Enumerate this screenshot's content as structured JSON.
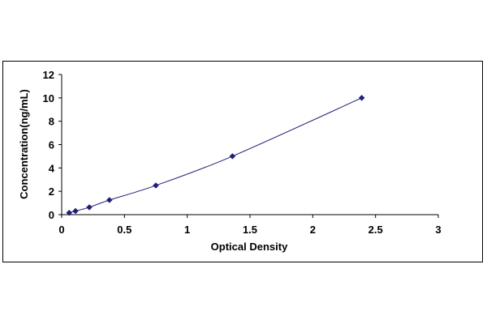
{
  "chart_data": {
    "type": "scatter",
    "title": "",
    "xlabel": "Optical Density",
    "ylabel": "Concentration(ng/mL)",
    "xlim": [
      0,
      3
    ],
    "ylim": [
      0,
      12
    ],
    "x_ticks": [
      "0",
      "0.5",
      "1",
      "1.5",
      "2",
      "2.5",
      "3"
    ],
    "y_ticks": [
      "0",
      "2",
      "4",
      "6",
      "8",
      "10",
      "12"
    ],
    "grid": false,
    "legend": "none",
    "fit_line": true,
    "series": [
      {
        "points": [
          {
            "x": 0.06,
            "y": 0.16
          },
          {
            "x": 0.11,
            "y": 0.31
          },
          {
            "x": 0.22,
            "y": 0.63
          },
          {
            "x": 0.38,
            "y": 1.25
          },
          {
            "x": 0.75,
            "y": 2.5
          },
          {
            "x": 1.36,
            "y": 5
          },
          {
            "x": 2.39,
            "y": 10
          }
        ]
      }
    ],
    "colors": {
      "marker": "#1f1f7a",
      "line": "#1f1f7a",
      "axis": "#000000"
    }
  }
}
